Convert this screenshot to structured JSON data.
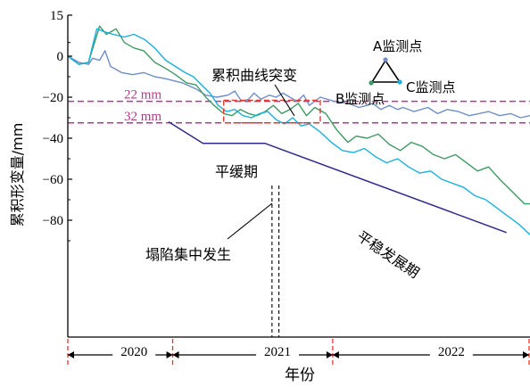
{
  "chart_data": {
    "type": "line",
    "ylabel": "累积形变量/mm",
    "xlabel": "年份",
    "y_ticks": [
      "15",
      "0",
      "−20",
      "−40",
      "−60",
      "−80"
    ],
    "y_values": [
      15,
      0,
      -20,
      -40,
      -60,
      -80
    ],
    "ylim": [
      -92,
      15
    ],
    "xlim": [
      2019.47,
      2022.82
    ],
    "year_labels": [
      "2020",
      "2021",
      "2022"
    ],
    "year_centers": [
      2019.95,
      2020.99,
      2022.25
    ],
    "year_boundaries": [
      2019.47,
      2020.23,
      2021.39,
      2022.82
    ],
    "thresholds": [
      {
        "label": "22 mm",
        "value": -22
      },
      {
        "label": "32 mm",
        "value": -32.5
      }
    ],
    "annotations": {
      "sudden_change": "累积曲线突变",
      "slow_period": "平缓期",
      "collapse": "塌陷集中发生",
      "stable_period": "平稳发展期"
    },
    "legend": {
      "a": "A监测点",
      "b": "B监测点",
      "c": "C监测点",
      "position": "top-right"
    },
    "colors": {
      "a": "#6f8fc6",
      "b": "#3f9a62",
      "c": "#16b1dc",
      "trend": "#2f2a8c",
      "threshold": "#b23b86",
      "box": "#e03a2f"
    },
    "series": [
      {
        "key": "a",
        "x": [
          2019.47,
          2019.55,
          2019.62,
          2019.65,
          2019.7,
          2019.74,
          2019.78,
          2019.86,
          2019.94,
          2020.02,
          2020.1,
          2020.18,
          2020.3,
          2020.4,
          2020.47,
          2020.55,
          2020.63,
          2020.68,
          2020.73,
          2020.78,
          2020.82,
          2020.87,
          2020.93,
          2020.98,
          2021.03,
          2021.08,
          2021.13,
          2021.18,
          2021.22,
          2021.3,
          2021.4,
          2021.5,
          2021.58,
          2021.64,
          2021.68,
          2021.74,
          2021.8,
          2021.86,
          2021.9,
          2021.98,
          2022.08,
          2022.15,
          2022.22,
          2022.3,
          2022.38,
          2022.45,
          2022.52,
          2022.6,
          2022.68,
          2022.75,
          2022.82
        ],
        "y": [
          0,
          -3,
          -4,
          -1,
          -2,
          2,
          -5,
          -8,
          -9,
          -8,
          -10,
          -11,
          -13,
          -16,
          -19,
          -20,
          -19,
          -17,
          -22,
          -21,
          -18,
          -21,
          -19,
          -20,
          -18,
          -20,
          -22,
          -19,
          -24,
          -20,
          -22,
          -23,
          -25,
          -24,
          -23,
          -26,
          -24,
          -26,
          -25,
          -27,
          -25,
          -28,
          -26,
          -27,
          -29,
          -28,
          -27,
          -29,
          -28,
          -30,
          -29
        ]
      },
      {
        "key": "b",
        "x": [
          2019.47,
          2019.55,
          2019.62,
          2019.7,
          2019.75,
          2019.82,
          2019.88,
          2019.95,
          2020.02,
          2020.1,
          2020.18,
          2020.25,
          2020.33,
          2020.4,
          2020.47,
          2020.53,
          2020.6,
          2020.66,
          2020.72,
          2020.78,
          2020.84,
          2020.9,
          2020.96,
          2021.02,
          2021.08,
          2021.14,
          2021.2,
          2021.26,
          2021.34,
          2021.42,
          2021.5,
          2021.56,
          2021.64,
          2021.72,
          2021.8,
          2021.88,
          2021.96,
          2022.04,
          2022.12,
          2022.2,
          2022.28,
          2022.36,
          2022.44,
          2022.52,
          2022.6,
          2022.66,
          2022.72,
          2022.78,
          2022.82
        ],
        "y": [
          0,
          -4,
          -3,
          11,
          8,
          10,
          5,
          3,
          2,
          -3,
          -6,
          -9,
          -13,
          -14,
          -20,
          -24,
          -28,
          -29,
          -26,
          -28,
          -29,
          -27,
          -24,
          -28,
          -26,
          -23,
          -29,
          -25,
          -28,
          -36,
          -42,
          -39,
          -40,
          -38,
          -43,
          -46,
          -42,
          -44,
          -48,
          -50,
          -48,
          -52,
          -56,
          -54,
          -60,
          -64,
          -68,
          -72,
          -72
        ]
      },
      {
        "key": "c",
        "x": [
          2019.47,
          2019.55,
          2019.62,
          2019.68,
          2019.73,
          2019.8,
          2019.88,
          2019.95,
          2020.03,
          2020.1,
          2020.18,
          2020.25,
          2020.32,
          2020.38,
          2020.44,
          2020.5,
          2020.56,
          2020.62,
          2020.68,
          2020.74,
          2020.8,
          2020.86,
          2020.92,
          2020.98,
          2021.04,
          2021.1,
          2021.16,
          2021.22,
          2021.3,
          2021.38,
          2021.46,
          2021.54,
          2021.62,
          2021.7,
          2021.78,
          2021.86,
          2021.94,
          2022.02,
          2022.1,
          2022.18,
          2022.26,
          2022.34,
          2022.42,
          2022.5,
          2022.58,
          2022.66,
          2022.74,
          2022.82
        ],
        "y": [
          0,
          -4,
          -3,
          10,
          9,
          8,
          7,
          8,
          6,
          3,
          -2,
          -5,
          -8,
          -10,
          -14,
          -18,
          -24,
          -27,
          -26,
          -29,
          -30,
          -28,
          -27,
          -31,
          -33,
          -30,
          -34,
          -33,
          -37,
          -42,
          -46,
          -47,
          -45,
          -49,
          -52,
          -50,
          -54,
          -57,
          -56,
          -60,
          -62,
          -64,
          -68,
          -70,
          -74,
          -78,
          -82,
          -87
        ]
      },
      {
        "key": "trend",
        "x": [
          2020.2,
          2020.45,
          2020.9,
          2022.65
        ],
        "y": [
          -32,
          -42.5,
          -42.5,
          -86
        ]
      }
    ],
    "collapse_window": [
      2020.95,
      2021.0
    ]
  }
}
